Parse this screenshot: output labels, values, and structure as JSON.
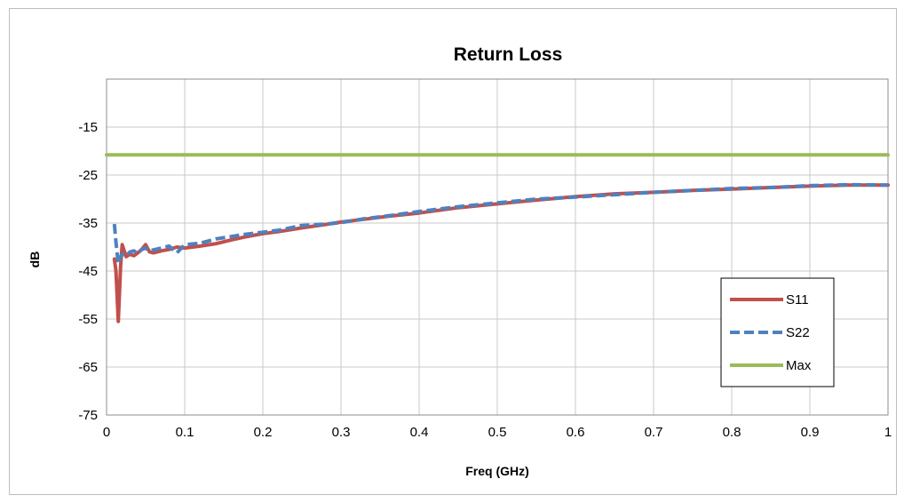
{
  "chart_data": {
    "type": "line",
    "title": "Return Loss",
    "xlabel": "Freq (GHz)",
    "ylabel": "dB",
    "xlim": [
      0,
      1
    ],
    "ylim": [
      -75,
      -5
    ],
    "xticks": [
      0,
      0.1,
      0.2,
      0.3,
      0.4,
      0.5,
      0.6,
      0.7,
      0.8,
      0.9,
      1
    ],
    "xtick_labels": [
      "0",
      "0.1",
      "0.2",
      "0.3",
      "0.4",
      "0.5",
      "0.6",
      "0.7",
      "0.8",
      "0.9",
      "1"
    ],
    "yticks": [
      -75,
      -65,
      -55,
      -45,
      -35,
      -25,
      -15
    ],
    "ytick_labels": [
      "-75",
      "-65",
      "-55",
      "-45",
      "-35",
      "-25",
      "-15"
    ],
    "grid": true,
    "legend_position": "bottom-right",
    "series": [
      {
        "name": "S11",
        "color": "#c0504d",
        "dash": "solid",
        "x": [
          0.01,
          0.012,
          0.015,
          0.018,
          0.02,
          0.025,
          0.03,
          0.035,
          0.04,
          0.045,
          0.05,
          0.055,
          0.06,
          0.07,
          0.08,
          0.09,
          0.1,
          0.12,
          0.14,
          0.16,
          0.18,
          0.2,
          0.22,
          0.25,
          0.28,
          0.3,
          0.33,
          0.36,
          0.4,
          0.45,
          0.5,
          0.55,
          0.6,
          0.65,
          0.7,
          0.75,
          0.8,
          0.85,
          0.9,
          0.95,
          1.0
        ],
        "y": [
          -42.5,
          -45,
          -55.5,
          -44,
          -39.5,
          -42,
          -41.5,
          -41.8,
          -41.2,
          -40.5,
          -39.5,
          -41,
          -41.2,
          -40.8,
          -40.5,
          -40,
          -40.2,
          -39.8,
          -39.3,
          -38.5,
          -37.8,
          -37.2,
          -36.8,
          -36,
          -35.3,
          -34.8,
          -34.2,
          -33.6,
          -32.9,
          -31.8,
          -31,
          -30.2,
          -29.5,
          -28.9,
          -28.6,
          -28.2,
          -27.9,
          -27.6,
          -27.3,
          -27.1,
          -27.1
        ]
      },
      {
        "name": "S22",
        "color": "#4f81bd",
        "dash": "dashed",
        "x": [
          0.01,
          0.012,
          0.015,
          0.018,
          0.02,
          0.025,
          0.03,
          0.035,
          0.04,
          0.045,
          0.05,
          0.055,
          0.06,
          0.07,
          0.08,
          0.09,
          0.1,
          0.12,
          0.14,
          0.16,
          0.18,
          0.2,
          0.22,
          0.25,
          0.28,
          0.3,
          0.33,
          0.36,
          0.4,
          0.45,
          0.5,
          0.55,
          0.6,
          0.65,
          0.7,
          0.75,
          0.8,
          0.85,
          0.9,
          0.95,
          1.0
        ],
        "y": [
          -35.2,
          -39,
          -43.5,
          -42,
          -41.5,
          -41.8,
          -41,
          -40.8,
          -41.3,
          -40.5,
          -40.2,
          -40.8,
          -40.6,
          -40.2,
          -39.8,
          -41.2,
          -39.5,
          -39.2,
          -38.3,
          -37.8,
          -37.3,
          -36.9,
          -36.5,
          -35.5,
          -35.2,
          -34.9,
          -34.1,
          -33.5,
          -32.6,
          -31.6,
          -30.8,
          -30,
          -29.6,
          -29.1,
          -28.6,
          -28.2,
          -27.8,
          -27.6,
          -27.2,
          -27,
          -27.1
        ]
      },
      {
        "name": "Max",
        "color": "#9bbb59",
        "dash": "solid",
        "x": [
          0.0,
          1.0
        ],
        "y": [
          -20.8,
          -20.8
        ]
      }
    ]
  }
}
